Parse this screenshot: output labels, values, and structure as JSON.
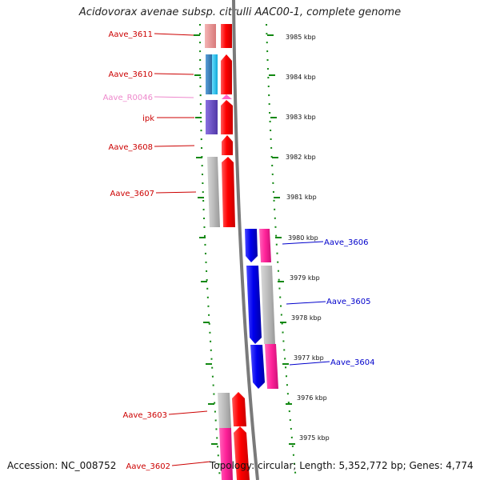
{
  "title": "Acidovorax avenae subsp. citrulli AAC00-1, complete genome",
  "footer": {
    "accession": "Accession: NC_008752",
    "summary": "Topology: circular; Length: 5,352,772 bp; Genes: 4,774"
  },
  "kbp_ticks": [
    {
      "label": "3985 kbp",
      "pos": 3985
    },
    {
      "label": "3984 kbp",
      "pos": 3984
    },
    {
      "label": "3983 kbp",
      "pos": 3983
    },
    {
      "label": "3982 kbp",
      "pos": 3982
    },
    {
      "label": "3981 kbp",
      "pos": 3981
    },
    {
      "label": "3980 kbp",
      "pos": 3980
    },
    {
      "label": "3979 kbp",
      "pos": 3979
    },
    {
      "label": "3978 kbp",
      "pos": 3978
    },
    {
      "label": "3977 kbp",
      "pos": 3977
    },
    {
      "label": "3976 kbp",
      "pos": 3976
    },
    {
      "label": "3975 kbp",
      "pos": 3975
    }
  ],
  "genes_left": [
    {
      "label": "Aave_3611",
      "color": "#cc0000"
    },
    {
      "label": "Aave_3610",
      "color": "#cc0000"
    },
    {
      "label": "Aave_R0046",
      "color": "#ee88cc"
    },
    {
      "label": "ipk",
      "color": "#cc0000"
    },
    {
      "label": "Aave_3608",
      "color": "#cc0000"
    },
    {
      "label": "Aave_3607",
      "color": "#cc0000"
    },
    {
      "label": "Aave_3603",
      "color": "#cc0000"
    },
    {
      "label": "Aave_3602",
      "color": "#cc0000"
    }
  ],
  "genes_right": [
    {
      "label": "Aave_3606",
      "color": "#0000cc"
    },
    {
      "label": "Aave_3605",
      "color": "#0000cc"
    },
    {
      "label": "Aave_3604",
      "color": "#0000cc"
    }
  ],
  "colors": {
    "forward_cds": "#ff0000",
    "reverse_cds": "#0000ee",
    "rna": "#ff66cc",
    "function_grey": "#bbbbbb",
    "function_pink": "#ff2299",
    "function_steelblue": "#3a7fb8",
    "function_cyan": "#22c8f0",
    "function_purple": "#6a4fc8",
    "function_salmon": "#ee9999",
    "backbone": "#808080",
    "dotted_border": "#118811"
  }
}
